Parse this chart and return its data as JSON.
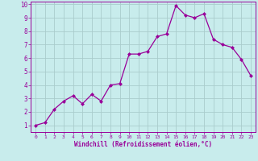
{
  "x": [
    0,
    1,
    2,
    3,
    4,
    5,
    6,
    7,
    8,
    9,
    10,
    11,
    12,
    13,
    14,
    15,
    16,
    17,
    18,
    19,
    20,
    21,
    22,
    23
  ],
  "y": [
    1.0,
    1.2,
    2.2,
    2.8,
    3.2,
    2.6,
    3.3,
    2.8,
    4.0,
    4.1,
    6.3,
    6.3,
    6.5,
    7.6,
    7.8,
    9.9,
    9.2,
    9.0,
    9.3,
    7.4,
    7.0,
    6.8,
    5.9,
    4.7
  ],
  "line_color": "#990099",
  "marker": "D",
  "marker_size": 2.0,
  "bg_color": "#c8ecec",
  "grid_color": "#aacccc",
  "xlabel": "Windchill (Refroidissement éolien,°C)",
  "xlabel_color": "#990099",
  "tick_color": "#990099",
  "ylim": [
    0.5,
    10.2
  ],
  "xlim": [
    -0.5,
    23.5
  ],
  "yticks": [
    1,
    2,
    3,
    4,
    5,
    6,
    7,
    8,
    9,
    10
  ],
  "xticks": [
    0,
    1,
    2,
    3,
    4,
    5,
    6,
    7,
    8,
    9,
    10,
    11,
    12,
    13,
    14,
    15,
    16,
    17,
    18,
    19,
    20,
    21,
    22,
    23
  ],
  "spine_color": "#990099",
  "linewidth": 0.9
}
